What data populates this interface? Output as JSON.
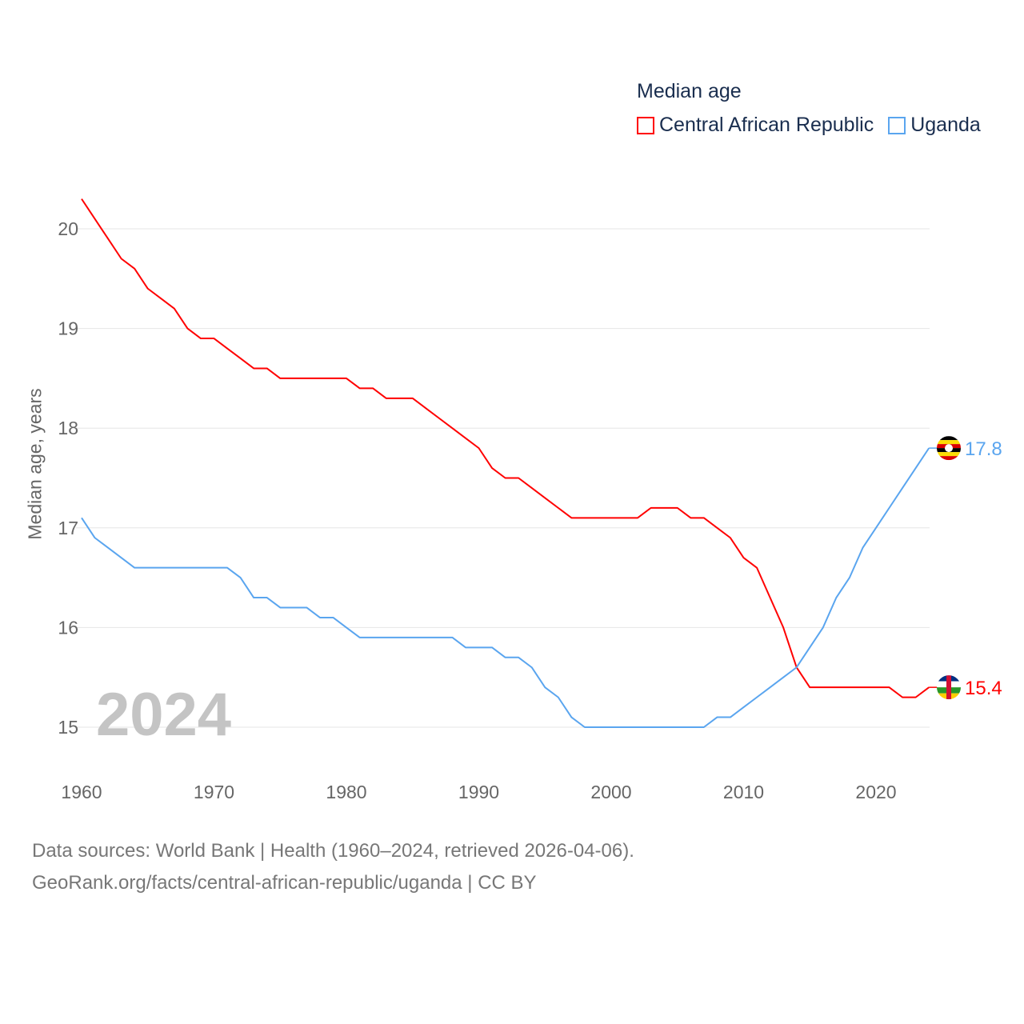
{
  "chart_data": {
    "type": "line",
    "title": "Median age",
    "xlabel": "",
    "ylabel": "Median age, years",
    "xlim": [
      1960,
      2024
    ],
    "ylim": [
      15,
      20
    ],
    "x_ticks": [
      1960,
      1970,
      1980,
      1990,
      2000,
      2010,
      2020
    ],
    "y_ticks": [
      15,
      16,
      17,
      18,
      19,
      20
    ],
    "grid": true,
    "legend_position": "top-right",
    "x": [
      1960,
      1961,
      1962,
      1963,
      1964,
      1965,
      1966,
      1967,
      1968,
      1969,
      1970,
      1971,
      1972,
      1973,
      1974,
      1975,
      1976,
      1977,
      1978,
      1979,
      1980,
      1981,
      1982,
      1983,
      1984,
      1985,
      1986,
      1987,
      1988,
      1989,
      1990,
      1991,
      1992,
      1993,
      1994,
      1995,
      1996,
      1997,
      1998,
      1999,
      2000,
      2001,
      2002,
      2003,
      2004,
      2005,
      2006,
      2007,
      2008,
      2009,
      2010,
      2011,
      2012,
      2013,
      2014,
      2015,
      2016,
      2017,
      2018,
      2019,
      2020,
      2021,
      2022,
      2023,
      2024
    ],
    "series": [
      {
        "name": "Central African Republic",
        "color": "#ff0000",
        "end_label": "15.4",
        "values": [
          20.3,
          20.1,
          19.9,
          19.7,
          19.6,
          19.4,
          19.3,
          19.2,
          19.0,
          18.9,
          18.9,
          18.8,
          18.7,
          18.6,
          18.6,
          18.5,
          18.5,
          18.5,
          18.5,
          18.5,
          18.5,
          18.4,
          18.4,
          18.3,
          18.3,
          18.3,
          18.2,
          18.1,
          18.0,
          17.9,
          17.8,
          17.6,
          17.5,
          17.5,
          17.4,
          17.3,
          17.2,
          17.1,
          17.1,
          17.1,
          17.1,
          17.1,
          17.1,
          17.2,
          17.2,
          17.2,
          17.1,
          17.1,
          17.0,
          16.9,
          16.7,
          16.6,
          16.3,
          16.0,
          15.6,
          15.4,
          15.4,
          15.4,
          15.4,
          15.4,
          15.4,
          15.4,
          15.3,
          15.3,
          15.4
        ]
      },
      {
        "name": "Uganda",
        "color": "#5aa5ef",
        "end_label": "17.8",
        "values": [
          17.1,
          16.9,
          16.8,
          16.7,
          16.6,
          16.6,
          16.6,
          16.6,
          16.6,
          16.6,
          16.6,
          16.6,
          16.5,
          16.3,
          16.3,
          16.2,
          16.2,
          16.2,
          16.1,
          16.1,
          16.0,
          15.9,
          15.9,
          15.9,
          15.9,
          15.9,
          15.9,
          15.9,
          15.9,
          15.8,
          15.8,
          15.8,
          15.7,
          15.7,
          15.6,
          15.4,
          15.3,
          15.1,
          15.0,
          15.0,
          15.0,
          15.0,
          15.0,
          15.0,
          15.0,
          15.0,
          15.0,
          15.0,
          15.1,
          15.1,
          15.2,
          15.3,
          15.4,
          15.5,
          15.6,
          15.8,
          16.0,
          16.3,
          16.5,
          16.8,
          17.0,
          17.2,
          17.4,
          17.6,
          17.8
        ]
      }
    ],
    "annotation": "2024"
  },
  "source": {
    "line1": "Data sources: World Bank | Health (1960–2024, retrieved 2026-04-06).",
    "line2": "GeoRank.org/facts/central-african-republic/uganda | CC BY"
  }
}
